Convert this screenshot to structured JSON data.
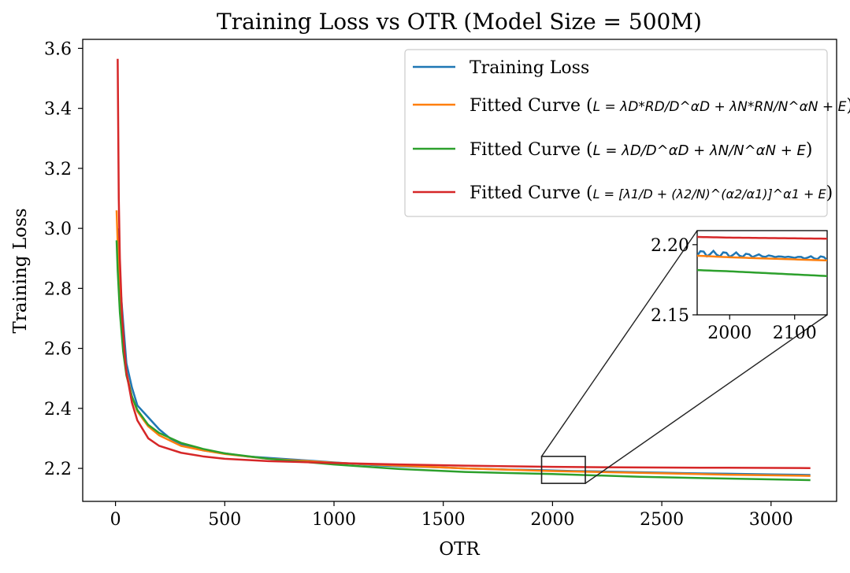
{
  "chart_data": {
    "type": "line",
    "title": "Training Loss vs OTR (Model Size = 500M)",
    "xlabel": "OTR",
    "ylabel": "Training Loss",
    "xlim": [
      -150,
      3300
    ],
    "ylim": [
      2.09,
      3.63
    ],
    "xticks": [
      0,
      500,
      1000,
      1500,
      2000,
      2500,
      3000
    ],
    "yticks": [
      2.2,
      2.4,
      2.6,
      2.8,
      3.0,
      3.2,
      3.4,
      3.6
    ],
    "xtick_labels": [
      "0",
      "500",
      "1000",
      "1500",
      "2000",
      "2500",
      "3000"
    ],
    "ytick_labels": [
      "2.2",
      "2.4",
      "2.6",
      "2.8",
      "3.0",
      "3.2",
      "3.4",
      "3.6"
    ],
    "legend_position": "upper right",
    "series": [
      {
        "name": "Training Loss",
        "color": "#1f77b4",
        "x": [
          10,
          25,
          50,
          75,
          100,
          150,
          200,
          250,
          300,
          400,
          500,
          600,
          700,
          800,
          900,
          1000,
          1100,
          1200,
          1300,
          1400,
          1500,
          1600,
          1700,
          1800,
          1900,
          2000,
          2100,
          2200,
          2400,
          2600,
          2800,
          3000,
          3180
        ],
        "y": [
          3.0,
          2.78,
          2.55,
          2.47,
          2.41,
          2.37,
          2.33,
          2.3,
          2.28,
          2.26,
          2.25,
          2.24,
          2.235,
          2.23,
          2.225,
          2.22,
          2.215,
          2.21,
          2.207,
          2.205,
          2.203,
          2.2,
          2.198,
          2.196,
          2.195,
          2.193,
          2.191,
          2.19,
          2.187,
          2.184,
          2.182,
          2.18,
          2.178
        ]
      },
      {
        "name": "Fitted Curve (L = λD*RD/D^αD + λN*RN/N^αN + E)",
        "color": "#ff7f0e",
        "x": [
          5,
          10,
          20,
          35,
          50,
          75,
          100,
          150,
          200,
          300,
          400,
          500,
          700,
          1000,
          1300,
          1600,
          2000,
          2400,
          2800,
          3180
        ],
        "y": [
          3.06,
          2.95,
          2.78,
          2.62,
          2.52,
          2.44,
          2.39,
          2.34,
          2.31,
          2.275,
          2.26,
          2.248,
          2.232,
          2.219,
          2.209,
          2.2,
          2.191,
          2.185,
          2.179,
          2.175
        ]
      },
      {
        "name": "Fitted Curve (L = λD/D^αD + λN/N^αN + E)",
        "color": "#2ca02c",
        "x": [
          5,
          10,
          20,
          35,
          50,
          75,
          100,
          150,
          200,
          300,
          400,
          500,
          700,
          1000,
          1300,
          1600,
          2000,
          2400,
          2800,
          3180
        ],
        "y": [
          2.96,
          2.86,
          2.72,
          2.59,
          2.51,
          2.44,
          2.395,
          2.345,
          2.318,
          2.285,
          2.265,
          2.25,
          2.232,
          2.213,
          2.198,
          2.188,
          2.181,
          2.172,
          2.166,
          2.161
        ]
      },
      {
        "name": "Fitted Curve (L = [λ1/D + (λ2/N)^(α2/α1)]^α1 + E)",
        "color": "#d62728",
        "x": [
          10,
          15,
          20,
          30,
          40,
          50,
          75,
          100,
          150,
          200,
          300,
          400,
          500,
          700,
          1000,
          1300,
          1600,
          2000,
          2400,
          2800,
          3180
        ],
        "y": [
          3.565,
          3.1,
          2.9,
          2.71,
          2.6,
          2.52,
          2.42,
          2.36,
          2.3,
          2.275,
          2.252,
          2.24,
          2.232,
          2.224,
          2.218,
          2.213,
          2.209,
          2.205,
          2.203,
          2.202,
          2.201
        ]
      }
    ],
    "inset": {
      "xlim": [
        1950,
        2150
      ],
      "ylim": [
        2.15,
        2.21
      ],
      "xticks": [
        2000,
        2100
      ],
      "yticks": [
        2.15,
        2.2
      ],
      "xtick_labels": [
        "2000",
        "2100"
      ],
      "ytick_labels": [
        "2.15",
        "2.20"
      ],
      "zoom_box_ylim": [
        2.15,
        2.24
      ]
    }
  },
  "legend": {
    "entry1": "Training Loss",
    "entry2_prefix": "Fitted Curve (",
    "entry2_formula": "L = λD*RD/D^αD + λN*RN/N^αN + E",
    "entry3_prefix": "Fitted Curve (",
    "entry3_formula": "L = λD/D^αD + λN/N^αN + E",
    "entry4_prefix": "Fitted Curve (",
    "entry4_formula": "L = [λ1/D + (λ2/N)^(α2/α1)]^α1 + E",
    "close_paren": ")"
  }
}
